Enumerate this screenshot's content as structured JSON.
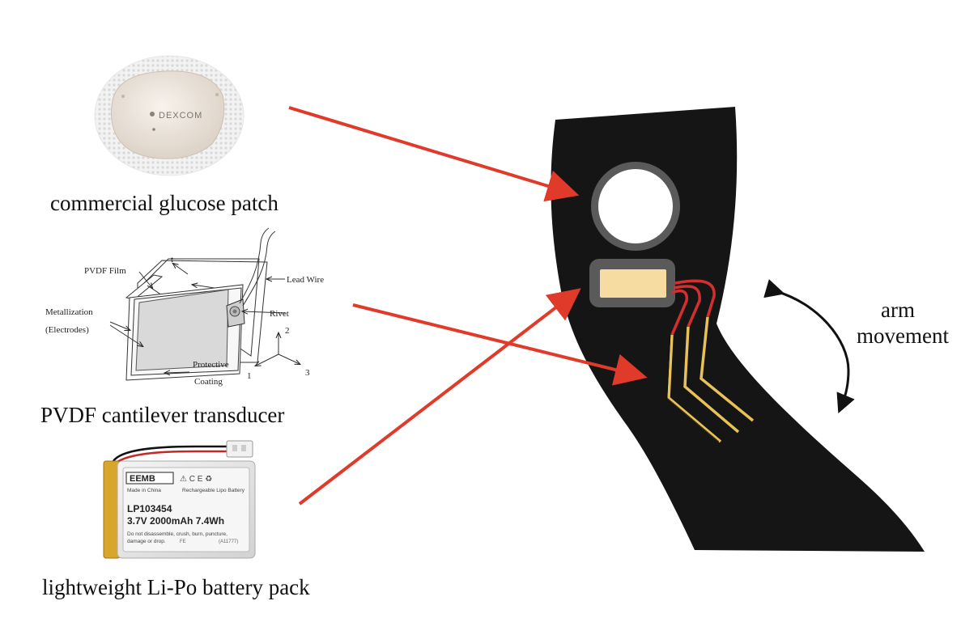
{
  "captions": {
    "glucose_patch": "commercial glucose patch",
    "pvdf": "PVDF cantilever transducer",
    "battery": "lightweight Li-Po battery pack",
    "arm_movement_line1": "arm",
    "arm_movement_line2": "movement"
  },
  "patch": {
    "brand": "DEXCOM"
  },
  "pvdf_diagram": {
    "t_label": "t",
    "pvdf_film": "PVDF Film",
    "lead_wire": "Lead Wire",
    "metallization": "Metallization",
    "electrodes": "(Electrodes)",
    "rivet": "Rivet",
    "protective": "Protective",
    "coating": "Coating",
    "axis_1": "1",
    "axis_2": "2",
    "axis_3": "3"
  },
  "battery_label": {
    "brand": "EEMB",
    "made_in": "Made in China",
    "type": "Rechargeable Lipo Battery",
    "model": "LP103454",
    "specs": "3.7V  2000mAh  7.4Wh",
    "warning_line1": "Do not disassemble, crush, burn, puncture,",
    "warning_line2": "damage or drop.",
    "code": "(A11777)",
    "fe": "FE"
  },
  "colors": {
    "arrow": "#e03a2a",
    "sleeve": "#151515",
    "electrode": "#e8c15a",
    "battery_pad": "#f6dca0"
  }
}
